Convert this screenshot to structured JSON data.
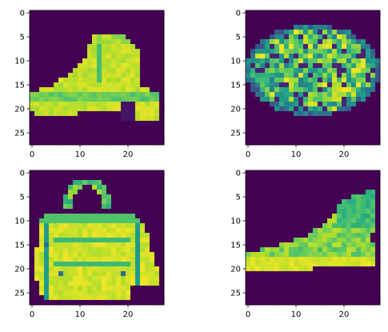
{
  "figure": {
    "layout": "2x2 grid of image panels (matplotlib imshow, viridis colormap)",
    "background": "#ffffff",
    "frame_color": "#000000"
  },
  "colormap": {
    "name": "viridis",
    "stops": [
      "#440154",
      "#482878",
      "#3e4989",
      "#31688e",
      "#26828e",
      "#1f9e89",
      "#35b779",
      "#6ece58",
      "#b5de2b",
      "#fde725"
    ]
  },
  "chart_data": [
    {
      "type": "heatmap",
      "name": "boot",
      "description": "28x28 grayscale image of an ankle boot rendered with viridis",
      "rows": 28,
      "cols": 28,
      "xticks": [
        0,
        10,
        20
      ],
      "yticks": [
        0,
        5,
        10,
        15,
        20,
        25
      ],
      "xlim": [
        -0.5,
        27.5
      ],
      "ylim": [
        27.5,
        -0.5
      ]
    },
    {
      "type": "heatmap",
      "name": "textured-bag",
      "description": "28x28 image of a round textured bag/pouch with speckled pattern",
      "rows": 28,
      "cols": 28,
      "xticks": [
        0,
        10,
        20
      ],
      "yticks": [
        0,
        5,
        10,
        15,
        20,
        25
      ],
      "xlim": [
        -0.5,
        27.5
      ],
      "ylim": [
        27.5,
        -0.5
      ]
    },
    {
      "type": "heatmap",
      "name": "handbag",
      "description": "28x28 image of a handbag with a handle on top",
      "rows": 28,
      "cols": 28,
      "xticks": [
        0,
        10,
        20
      ],
      "yticks": [
        0,
        5,
        10,
        15,
        20,
        25
      ],
      "xlim": [
        -0.5,
        27.5
      ],
      "ylim": [
        27.5,
        -0.5
      ]
    },
    {
      "type": "heatmap",
      "name": "sneaker",
      "description": "28x28 image of a low-profile sneaker",
      "rows": 28,
      "cols": 28,
      "xticks": [
        0,
        10,
        20
      ],
      "yticks": [
        0,
        5,
        10,
        15,
        20,
        25
      ],
      "xlim": [
        -0.5,
        27.5
      ],
      "ylim": [
        27.5,
        -0.5
      ]
    }
  ]
}
